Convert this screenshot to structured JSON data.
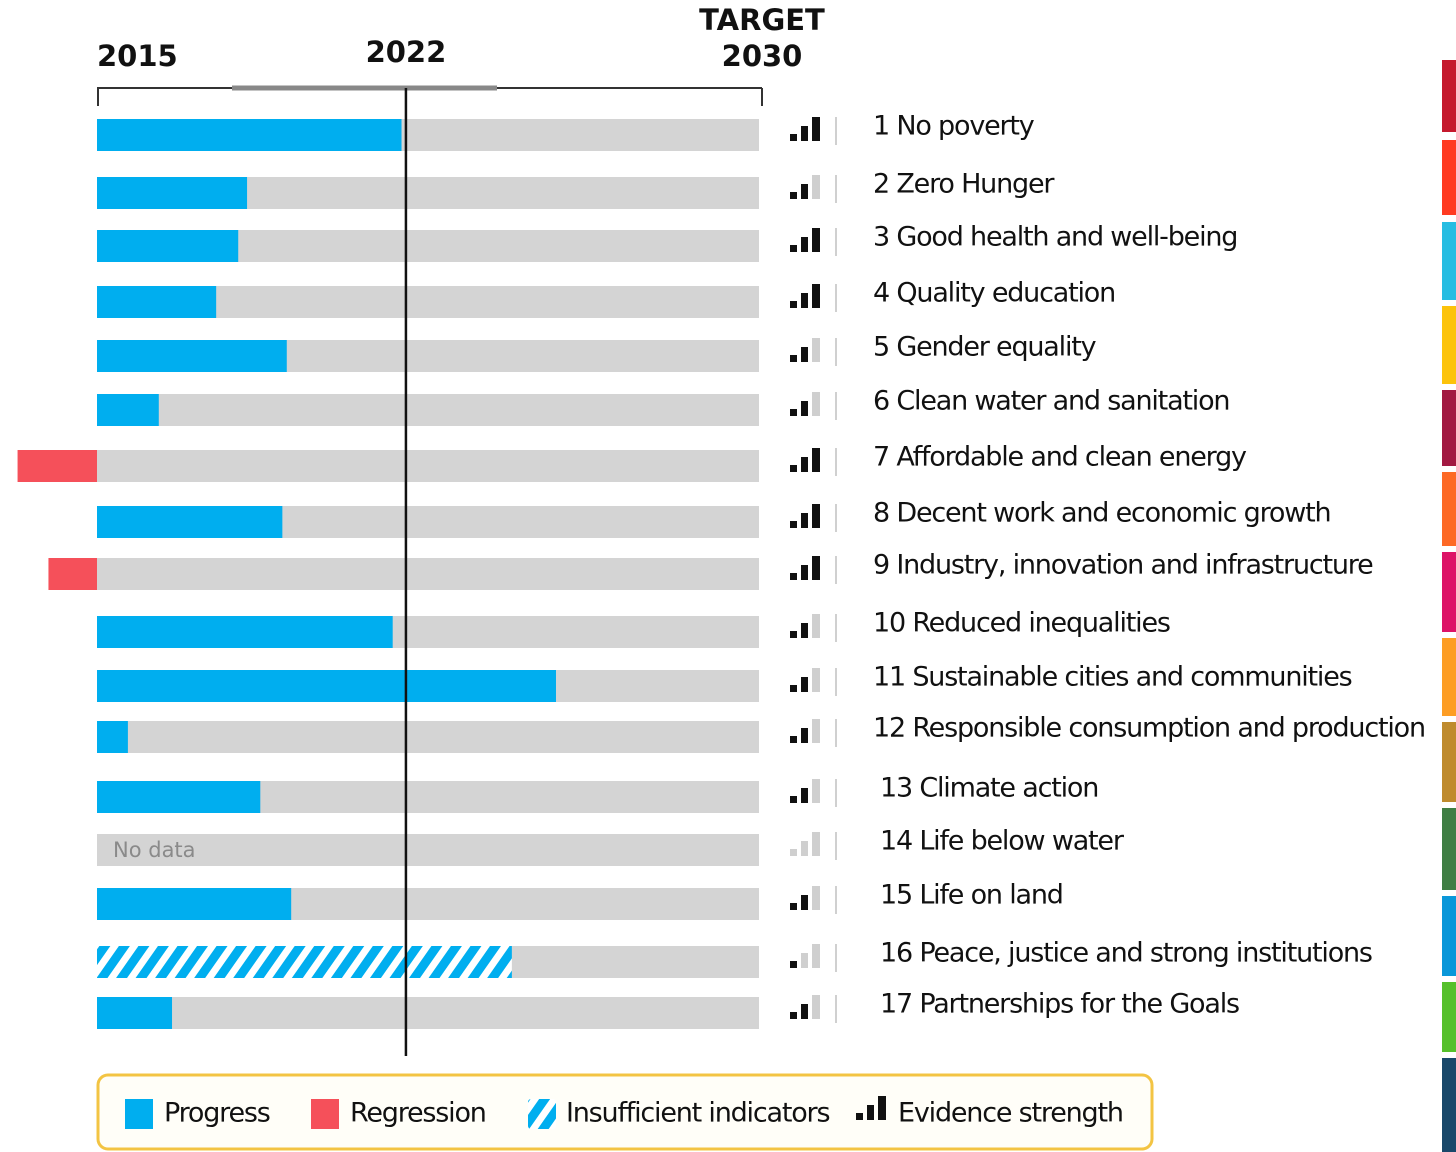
{
  "chart_data": {
    "type": "bar",
    "orientation": "horizontal",
    "xlim": [
      2015,
      2030
    ],
    "xticks": [
      2015,
      2022,
      2030
    ],
    "annotation": "TARGET",
    "categories": [
      "1 No poverty",
      "2 Zero Hunger",
      "3 Good health and well-being",
      "4 Quality education",
      "5 Gender equality",
      "6 Clean water and sanitation",
      "7 Affordable and clean energy",
      "8 Decent work and economic growth",
      "9 Industry, innovation and infrastructure",
      "10 Reduced inequalities",
      "11 Sustainable cities  and communities",
      "12 Responsible consumption and production",
      "13 Climate action",
      "14 Life below water",
      "15 Life on land",
      "16 Peace, justice and strong institutions",
      "17 Partnerships for the Goals"
    ],
    "values": [
      2021.9,
      2018.4,
      2018.2,
      2017.7,
      2019.3,
      2016.4,
      2013.2,
      2019.2,
      2013.9,
      2021.7,
      2025.4,
      2015.7,
      2018.7,
      null,
      2019.4,
      2024.4,
      2016.7
    ],
    "status": [
      "Progress",
      "Progress",
      "Progress",
      "Progress",
      "Progress",
      "Progress",
      "Regression",
      "Progress",
      "Regression",
      "Progress",
      "Progress",
      "Progress",
      "Progress",
      null,
      "Progress",
      "Insufficient indicators",
      "Progress"
    ],
    "evidence": [
      3,
      2,
      3,
      3,
      2,
      2,
      3,
      3,
      3,
      2,
      2,
      2,
      2,
      0,
      2,
      1,
      2
    ],
    "no_data_label": "No data",
    "track_color": "#d4d4d4",
    "legend": [
      {
        "name": "Progress",
        "color": "#00aeef"
      },
      {
        "name": "Regression",
        "color": "#f5505a"
      },
      {
        "name": "Insufficient indicators",
        "color": "#00aeef"
      },
      {
        "name": "Evidence strength",
        "color": "#111111"
      }
    ]
  }
}
